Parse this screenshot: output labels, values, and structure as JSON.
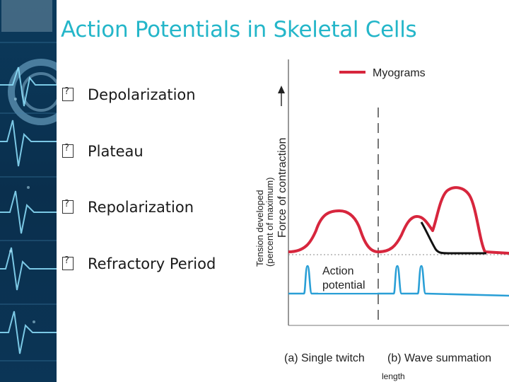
{
  "slide": {
    "title": "Action Potentials in Skeletal Cells",
    "bullets": [
      {
        "label": "Depolarization"
      },
      {
        "label": "Plateau"
      },
      {
        "label": "Repolarization"
      },
      {
        "label": "Refractory Period"
      }
    ]
  },
  "figure": {
    "legend_label": "Myograms",
    "y_label_outer": "Force of contraction",
    "y_label_inner_line1": "Tension developed",
    "y_label_inner_line2": "(percent of maximum)",
    "action_potential_line1": "Action",
    "action_potential_line2": "potential",
    "caption_a": "(a) Single twitch",
    "caption_b": "(b) Wave summation",
    "bottom_fragment": "length",
    "colors": {
      "myogram": "#d7263d",
      "action_potential": "#2a9fd6",
      "summation_tail": "#111111",
      "title": "#24b6c9",
      "side_strip": "#0b3a5c"
    }
  }
}
